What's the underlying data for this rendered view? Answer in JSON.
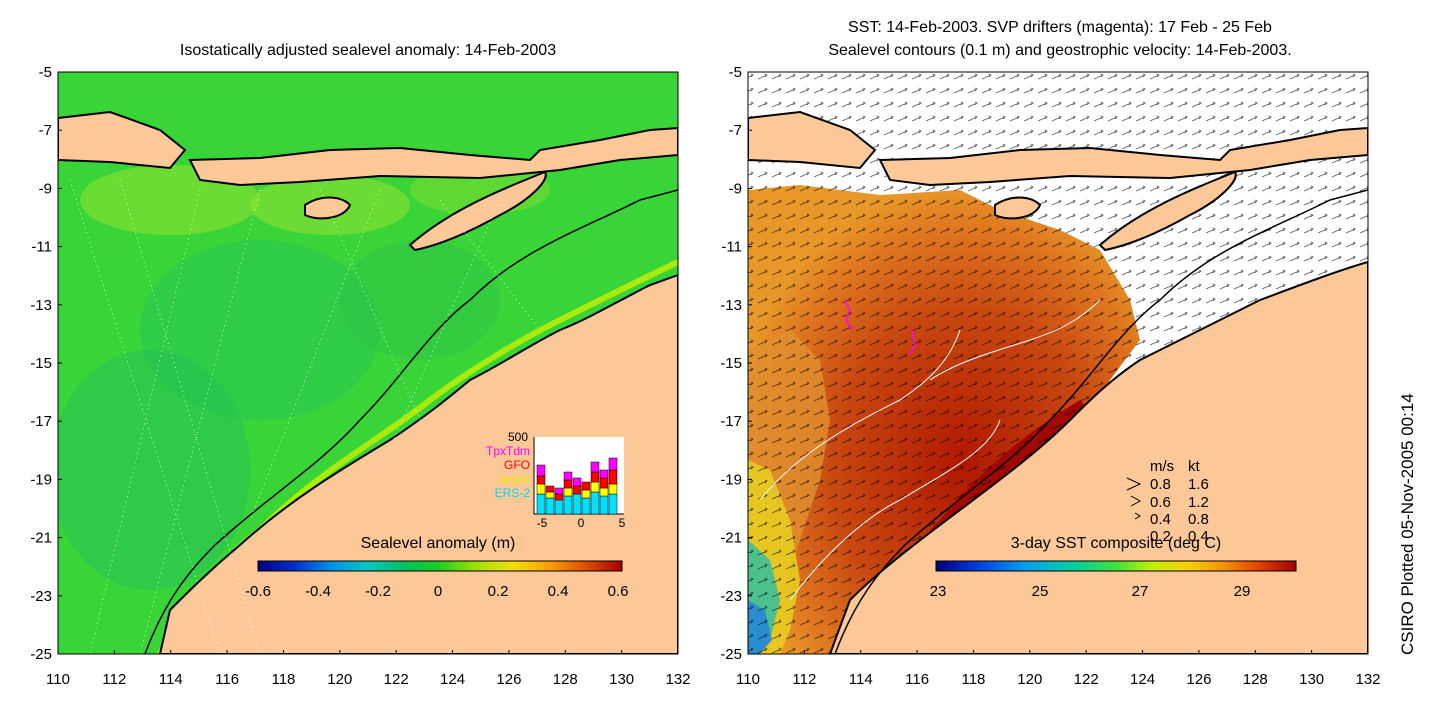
{
  "left_panel": {
    "title": "Isostatically adjusted sealevel anomaly: 14-Feb-2003",
    "colorbar": {
      "label": "Sealevel anomaly (m)",
      "ticks": [
        "-0.6",
        "-0.4",
        "-0.2",
        "0",
        "0.2",
        "0.4",
        "0.6"
      ],
      "colors": [
        "#00007a",
        "#0030d0",
        "#0090e8",
        "#00c8c0",
        "#00c060",
        "#20d020",
        "#a0e000",
        "#f0e000",
        "#f8a000",
        "#e05000",
        "#a00000"
      ]
    },
    "inset": {
      "ymax_label": "500",
      "legend": [
        {
          "label": "TpxTdm",
          "color": "#ff00ff"
        },
        {
          "label": "GFO",
          "color": "#ff0000"
        },
        {
          "label": "Jason",
          "color": "#ffff00"
        },
        {
          "label": "ERS-2",
          "color": "#00e0ff"
        }
      ],
      "x_ticks": [
        "-5",
        "0",
        "5"
      ]
    }
  },
  "right_panel": {
    "title_line1": "SST: 14-Feb-2003. SVP drifters (magenta): 17 Feb - 25 Feb",
    "title_line2": "Sealevel contours (0.1 m) and geostrophic velocity: 14-Feb-2003.",
    "colorbar": {
      "label": "3-day SST composite (deg C)",
      "ticks": [
        "23",
        "25",
        "27",
        "29"
      ],
      "colors": [
        "#00007a",
        "#0040e0",
        "#00a0f0",
        "#00d0a0",
        "#40e040",
        "#c0f000",
        "#f8d000",
        "#f89000",
        "#e04000",
        "#a00000"
      ]
    },
    "velocity_legend": {
      "header_ms": "m/s",
      "header_kt": "kt",
      "rows": [
        {
          "ms": "0.8",
          "kt": "1.6"
        },
        {
          "ms": "0.6",
          "kt": "1.2"
        },
        {
          "ms": "0.4",
          "kt": "0.8"
        },
        {
          "ms": "0.2",
          "kt": "0.4"
        }
      ]
    }
  },
  "axes": {
    "y_ticks": [
      "-5",
      "-7",
      "-9",
      "-11",
      "-13",
      "-15",
      "-17",
      "-19",
      "-21",
      "-23",
      "-25"
    ],
    "x_ticks": [
      "110",
      "112",
      "114",
      "116",
      "118",
      "120",
      "122",
      "124",
      "126",
      "128",
      "130",
      "132"
    ]
  },
  "credit": "CSIRO Plotted 05-Nov-2005 00:14",
  "colors": {
    "land": "#fcc898",
    "sea_green": "#38d438",
    "sst_red": "#a81800"
  }
}
